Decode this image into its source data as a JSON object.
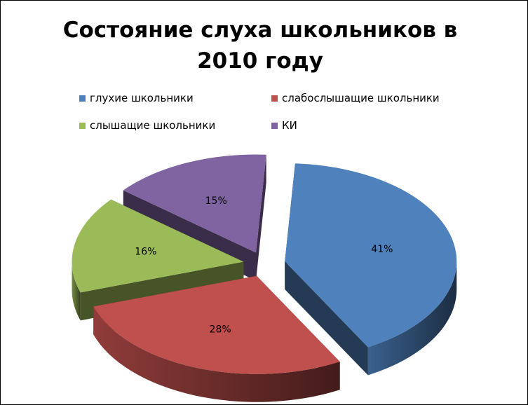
{
  "chart_data": {
    "type": "pie",
    "title": "Состояние слуха школьников в 2010 году",
    "legend_position": "top",
    "three_d": true,
    "exploded": true,
    "series": [
      {
        "name": "глухие школьники",
        "value": 41,
        "label": "41%",
        "color": "#4F81BD"
      },
      {
        "name": "слабослышащие школьники",
        "value": 28,
        "label": "28%",
        "color": "#C0504D"
      },
      {
        "name": "слышащие школьники",
        "value": 16,
        "label": "16%",
        "color": "#9BBB59"
      },
      {
        "name": "КИ",
        "value": 15,
        "label": "15%",
        "color": "#8064A2"
      }
    ]
  }
}
